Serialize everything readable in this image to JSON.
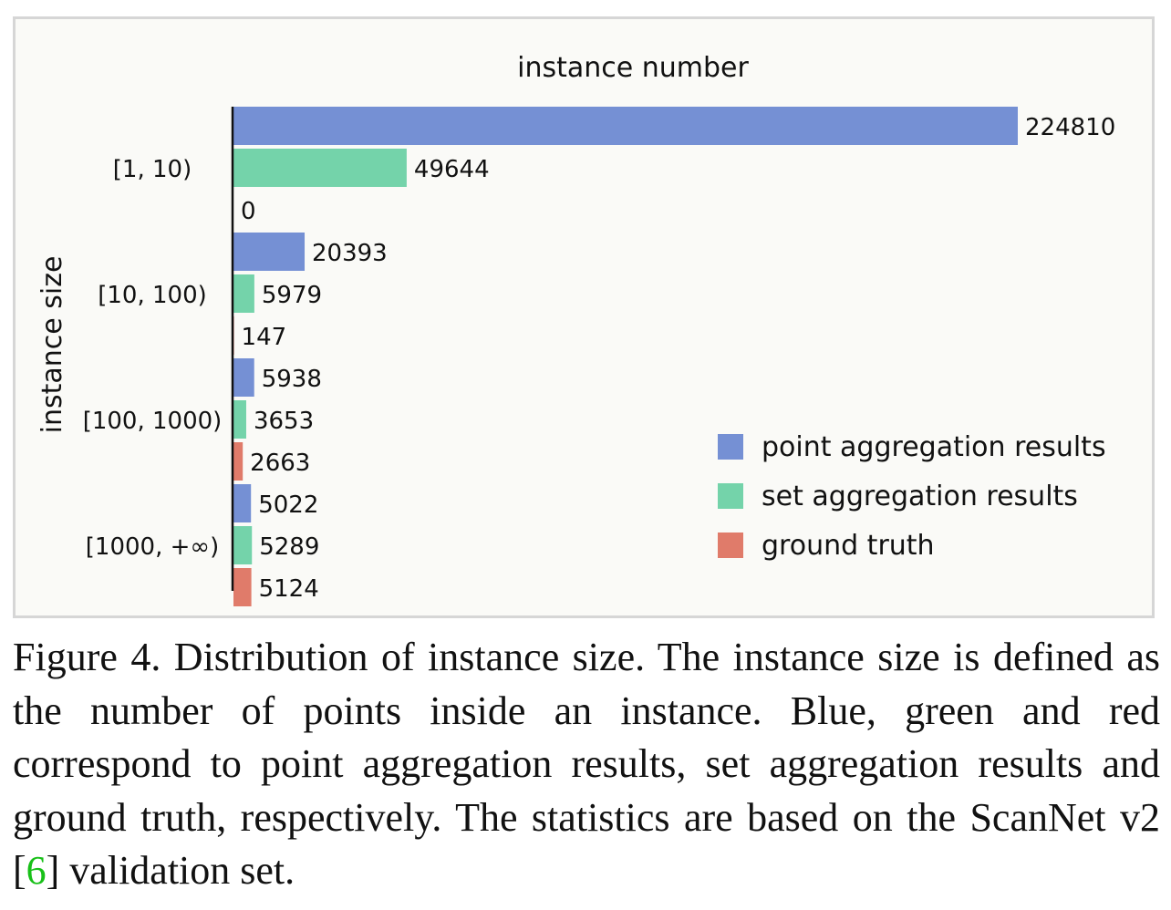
{
  "chart_data": {
    "type": "bar",
    "orientation": "horizontal",
    "title": "instance number",
    "ylabel": "instance size",
    "categories": [
      "[1, 10)",
      "[10, 100)",
      "[100, 1000)",
      "[1000, +∞)"
    ],
    "series": [
      {
        "name": "point aggregation results",
        "color": "#7590d4",
        "values": [
          224810,
          20393,
          5938,
          5022
        ]
      },
      {
        "name": "set aggregation results",
        "color": "#74d3aa",
        "values": [
          49644,
          5979,
          3653,
          5289
        ]
      },
      {
        "name": "ground truth",
        "color": "#e07b6a",
        "values": [
          0,
          147,
          2663,
          5124
        ]
      }
    ],
    "xlim": [
      0,
      224810
    ],
    "grid": false,
    "legend_position": "bottom-right"
  },
  "caption": {
    "text_before_ref": "Figure 4. Distribution of instance size. The instance size is defined as the number of points inside an instance.  Blue, green and red correspond to point aggregation results, set aggregation results and ground truth, respectively. The statistics are based on the ScanNet v2 [",
    "ref": "6",
    "text_after_ref": "] validation set."
  }
}
